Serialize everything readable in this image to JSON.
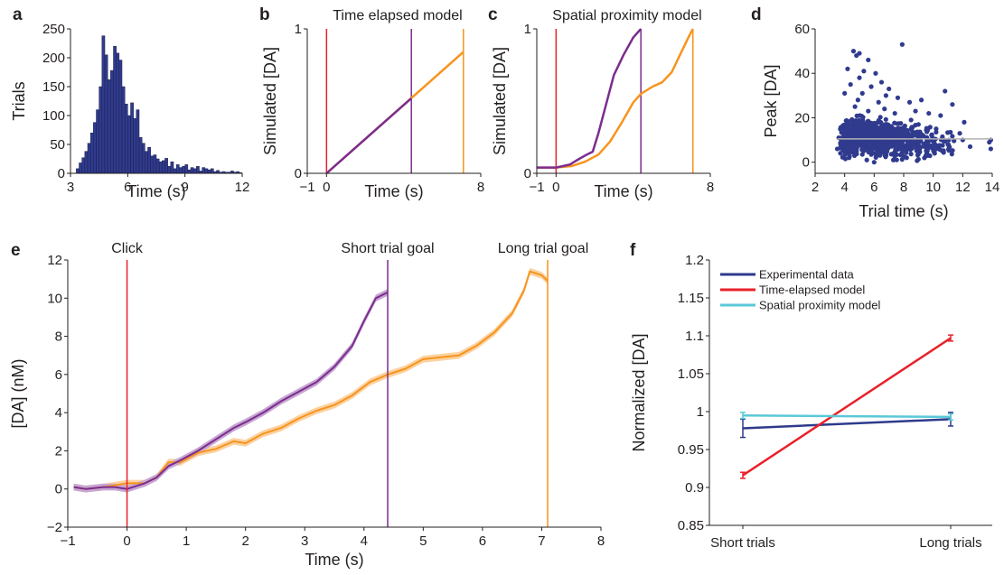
{
  "colors": {
    "axis": "#231f20",
    "purple": "#7b2d8e",
    "orange": "#f7941d",
    "red": "#e8212a",
    "blue": "#2e3a8c",
    "navy": "#303b8e",
    "cyan": "#5ac8d8",
    "gray": "#b3b3b3",
    "shadePurple": "#c7a6d3",
    "shadeOrange": "#fbd2a2"
  },
  "chart_data": [
    {
      "panel": "a",
      "type": "bar",
      "xlabel": "Time (s)",
      "ylabel": "Trials",
      "xlim": [
        3,
        12
      ],
      "ylim": [
        0,
        250
      ],
      "xticks": [
        "3",
        "6",
        "9",
        "12"
      ],
      "yticks": [
        "0",
        "50",
        "100",
        "150",
        "200",
        "250"
      ],
      "bin_width": 0.15,
      "bins": [
        {
          "x": 3.3,
          "v": 8
        },
        {
          "x": 3.45,
          "v": 18
        },
        {
          "x": 3.6,
          "v": 27
        },
        {
          "x": 3.75,
          "v": 38
        },
        {
          "x": 3.9,
          "v": 52
        },
        {
          "x": 4.05,
          "v": 70
        },
        {
          "x": 4.2,
          "v": 88
        },
        {
          "x": 4.35,
          "v": 110
        },
        {
          "x": 4.5,
          "v": 150
        },
        {
          "x": 4.65,
          "v": 238
        },
        {
          "x": 4.8,
          "v": 205
        },
        {
          "x": 4.95,
          "v": 162
        },
        {
          "x": 5.1,
          "v": 178
        },
        {
          "x": 5.25,
          "v": 220
        },
        {
          "x": 5.4,
          "v": 208
        },
        {
          "x": 5.55,
          "v": 196
        },
        {
          "x": 5.7,
          "v": 150
        },
        {
          "x": 5.85,
          "v": 120
        },
        {
          "x": 6.0,
          "v": 100
        },
        {
          "x": 6.15,
          "v": 122
        },
        {
          "x": 6.3,
          "v": 95
        },
        {
          "x": 6.45,
          "v": 110
        },
        {
          "x": 6.6,
          "v": 62
        },
        {
          "x": 6.75,
          "v": 52
        },
        {
          "x": 6.9,
          "v": 38
        },
        {
          "x": 7.05,
          "v": 45
        },
        {
          "x": 7.2,
          "v": 30
        },
        {
          "x": 7.35,
          "v": 32
        },
        {
          "x": 7.5,
          "v": 25
        },
        {
          "x": 7.65,
          "v": 20
        },
        {
          "x": 7.8,
          "v": 22
        },
        {
          "x": 7.95,
          "v": 26
        },
        {
          "x": 8.1,
          "v": 12
        },
        {
          "x": 8.25,
          "v": 20
        },
        {
          "x": 8.4,
          "v": 8
        },
        {
          "x": 8.55,
          "v": 15
        },
        {
          "x": 8.7,
          "v": 10
        },
        {
          "x": 8.85,
          "v": 12
        },
        {
          "x": 9.0,
          "v": 15
        },
        {
          "x": 9.15,
          "v": 6
        },
        {
          "x": 9.3,
          "v": 10
        },
        {
          "x": 9.45,
          "v": 8
        },
        {
          "x": 9.6,
          "v": 12
        },
        {
          "x": 9.75,
          "v": 4
        },
        {
          "x": 9.9,
          "v": 10
        },
        {
          "x": 10.05,
          "v": 8
        },
        {
          "x": 10.2,
          "v": 6
        },
        {
          "x": 10.35,
          "v": 8
        },
        {
          "x": 10.5,
          "v": 3
        },
        {
          "x": 10.65,
          "v": 5
        },
        {
          "x": 10.8,
          "v": 2
        },
        {
          "x": 10.95,
          "v": 3
        },
        {
          "x": 11.1,
          "v": 2
        },
        {
          "x": 11.25,
          "v": 2
        },
        {
          "x": 11.4,
          "v": 4
        },
        {
          "x": 11.55,
          "v": 2
        },
        {
          "x": 11.7,
          "v": 3
        },
        {
          "x": 11.85,
          "v": 1
        }
      ]
    },
    {
      "panel": "b",
      "type": "line",
      "title": "Time elapsed model",
      "xlabel": "Time (s)",
      "ylabel": "Simulated [DA]",
      "xlim": [
        -1,
        8
      ],
      "ylim": [
        0,
        1
      ],
      "xticks": [
        "−1",
        "0",
        "8"
      ],
      "yticks": [
        "0",
        "1"
      ],
      "vlines": [
        {
          "x": 0,
          "color": "red"
        },
        {
          "x": 4.4,
          "color": "purple"
        },
        {
          "x": 7.1,
          "color": "orange"
        }
      ],
      "series": [
        {
          "color": "orange",
          "points": [
            [
              0,
              0
            ],
            [
              7.1,
              0.84
            ]
          ]
        },
        {
          "color": "purple",
          "points": [
            [
              0,
              0
            ],
            [
              4.4,
              0.52
            ]
          ]
        }
      ]
    },
    {
      "panel": "c",
      "type": "line",
      "title": "Spatial proximity model",
      "xlabel": "Time (s)",
      "ylabel": "Simulated [DA]",
      "xlim": [
        -1,
        8
      ],
      "ylim": [
        0,
        1
      ],
      "xticks": [
        "−1",
        "0",
        "8"
      ],
      "yticks": [
        "0",
        "1"
      ],
      "vlines": [
        {
          "x": 0,
          "color": "red"
        },
        {
          "x": 4.4,
          "color": "purple"
        },
        {
          "x": 7.1,
          "color": "orange"
        }
      ],
      "series": [
        {
          "color": "orange",
          "points": [
            [
              -1,
              0.04
            ],
            [
              0,
              0.04
            ],
            [
              0.8,
              0.05
            ],
            [
              1.5,
              0.08
            ],
            [
              2.2,
              0.13
            ],
            [
              2.8,
              0.22
            ],
            [
              3.4,
              0.35
            ],
            [
              4.0,
              0.49
            ],
            [
              4.4,
              0.55
            ],
            [
              5.0,
              0.6
            ],
            [
              5.5,
              0.63
            ],
            [
              6.0,
              0.7
            ],
            [
              6.5,
              0.84
            ],
            [
              6.9,
              0.95
            ],
            [
              7.1,
              1.0
            ]
          ]
        },
        {
          "color": "purple",
          "points": [
            [
              -1,
              0.04
            ],
            [
              0,
              0.04
            ],
            [
              0.7,
              0.06
            ],
            [
              1.2,
              0.1
            ],
            [
              1.6,
              0.13
            ],
            [
              1.9,
              0.15
            ],
            [
              2.2,
              0.28
            ],
            [
              2.6,
              0.48
            ],
            [
              3.0,
              0.68
            ],
            [
              3.5,
              0.82
            ],
            [
              4.0,
              0.94
            ],
            [
              4.4,
              1.0
            ]
          ]
        }
      ]
    },
    {
      "panel": "d",
      "type": "scatter",
      "xlabel": "Trial time (s)",
      "ylabel": "Peak [DA]",
      "xlim": [
        2,
        14
      ],
      "ylim": [
        -5,
        60
      ],
      "xticks": [
        "2",
        "4",
        "6",
        "8",
        "10",
        "12",
        "14"
      ],
      "yticks": [
        "0",
        "20",
        "40",
        "60"
      ],
      "hline": 10.5,
      "points": [
        [
          4.6,
          50
        ],
        [
          4.8,
          48
        ],
        [
          5.0,
          49
        ],
        [
          7.9,
          53
        ],
        [
          5.6,
          46
        ],
        [
          4.2,
          42
        ],
        [
          5.3,
          41
        ],
        [
          6.1,
          40
        ],
        [
          5.0,
          38
        ],
        [
          6.5,
          36
        ],
        [
          4.4,
          35
        ],
        [
          5.8,
          34
        ],
        [
          7.0,
          33
        ],
        [
          4.0,
          31
        ],
        [
          6.8,
          30
        ],
        [
          5.2,
          31
        ],
        [
          7.6,
          29
        ],
        [
          8.4,
          27
        ],
        [
          9.2,
          28
        ],
        [
          4.9,
          28
        ],
        [
          10.8,
          32
        ],
        [
          11.3,
          26
        ],
        [
          6.3,
          27
        ],
        [
          8.8,
          23
        ],
        [
          9.7,
          22
        ],
        [
          10.5,
          21
        ],
        [
          12.1,
          18
        ],
        [
          13.9,
          10
        ],
        [
          13.9,
          6
        ],
        [
          13.8,
          9
        ],
        [
          3.6,
          11
        ],
        [
          3.5,
          6
        ],
        [
          12.5,
          7
        ],
        [
          11.8,
          13
        ],
        [
          10.1,
          4
        ],
        [
          9.5,
          3
        ],
        [
          8.2,
          2
        ],
        [
          6.0,
          0
        ],
        [
          5.5,
          1
        ],
        [
          7.3,
          1
        ],
        [
          4.3,
          2
        ],
        [
          11.0,
          8
        ],
        [
          12.0,
          10
        ],
        [
          10.2,
          15
        ],
        [
          9.0,
          17
        ],
        [
          8.5,
          19
        ],
        [
          7.4,
          22
        ],
        [
          6.7,
          24
        ],
        [
          5.6,
          23
        ],
        [
          4.7,
          25
        ],
        [
          7.8,
          12
        ],
        [
          6.4,
          18
        ]
      ],
      "dense": [
        {
          "x": 4.2,
          "y": 11,
          "n": 8
        },
        {
          "x": 4.6,
          "y": 12,
          "n": 10
        },
        {
          "x": 5.0,
          "y": 13,
          "n": 10
        },
        {
          "x": 5.4,
          "y": 12,
          "n": 10
        },
        {
          "x": 5.8,
          "y": 11,
          "n": 9
        },
        {
          "x": 6.2,
          "y": 11,
          "n": 8
        },
        {
          "x": 6.6,
          "y": 10,
          "n": 7
        },
        {
          "x": 7.0,
          "y": 10,
          "n": 6
        },
        {
          "x": 7.5,
          "y": 10,
          "n": 5
        },
        {
          "x": 8.0,
          "y": 10,
          "n": 4
        },
        {
          "x": 8.5,
          "y": 10,
          "n": 3
        },
        {
          "x": 9.0,
          "y": 9,
          "n": 3
        },
        {
          "x": 9.5,
          "y": 9,
          "n": 2
        },
        {
          "x": 10.0,
          "y": 9,
          "n": 2
        },
        {
          "x": 10.6,
          "y": 9,
          "n": 1
        },
        {
          "x": 11.2,
          "y": 9,
          "n": 1
        },
        {
          "x": 3.9,
          "y": 10,
          "n": 3
        }
      ]
    },
    {
      "panel": "e",
      "type": "line",
      "xlabel": "Time (s)",
      "ylabel": "[DA] (nM)",
      "xlim": [
        -1,
        8
      ],
      "ylim": [
        -2,
        12
      ],
      "xticks": [
        "−1",
        "0",
        "1",
        "2",
        "3",
        "4",
        "5",
        "6",
        "7",
        "8"
      ],
      "yticks": [
        "−2",
        "0",
        "2",
        "4",
        "6",
        "8",
        "10",
        "12"
      ],
      "vlines": [
        {
          "x": 0,
          "color": "red",
          "label": "Click"
        },
        {
          "x": 4.4,
          "color": "purple",
          "label": "Short trial goal"
        },
        {
          "x": 7.1,
          "color": "orange",
          "label": "Long trial goal"
        }
      ],
      "series": [
        {
          "color": "orange",
          "points": [
            [
              -0.9,
              0.1
            ],
            [
              -0.7,
              0.0
            ],
            [
              -0.4,
              0.1
            ],
            [
              -0.2,
              0.2
            ],
            [
              0,
              0.3
            ],
            [
              0.3,
              0.3
            ],
            [
              0.5,
              0.6
            ],
            [
              0.7,
              1.4
            ],
            [
              0.9,
              1.4
            ],
            [
              1.2,
              1.9
            ],
            [
              1.5,
              2.1
            ],
            [
              1.8,
              2.5
            ],
            [
              2.0,
              2.4
            ],
            [
              2.3,
              2.9
            ],
            [
              2.6,
              3.2
            ],
            [
              2.9,
              3.7
            ],
            [
              3.2,
              4.1
            ],
            [
              3.5,
              4.4
            ],
            [
              3.8,
              4.9
            ],
            [
              4.1,
              5.6
            ],
            [
              4.4,
              6.0
            ],
            [
              4.7,
              6.3
            ],
            [
              5.0,
              6.8
            ],
            [
              5.3,
              6.9
            ],
            [
              5.6,
              7.0
            ],
            [
              5.9,
              7.5
            ],
            [
              6.2,
              8.2
            ],
            [
              6.5,
              9.2
            ],
            [
              6.7,
              10.4
            ],
            [
              6.8,
              11.4
            ],
            [
              7.0,
              11.2
            ],
            [
              7.1,
              10.9
            ]
          ]
        },
        {
          "color": "purple",
          "points": [
            [
              -0.9,
              0.1
            ],
            [
              -0.7,
              0.0
            ],
            [
              -0.4,
              0.1
            ],
            [
              -0.2,
              0.1
            ],
            [
              0,
              0.0
            ],
            [
              0.3,
              0.3
            ],
            [
              0.5,
              0.6
            ],
            [
              0.7,
              1.2
            ],
            [
              0.9,
              1.5
            ],
            [
              1.2,
              2.0
            ],
            [
              1.5,
              2.6
            ],
            [
              1.8,
              3.2
            ],
            [
              2.0,
              3.5
            ],
            [
              2.3,
              4.0
            ],
            [
              2.6,
              4.6
            ],
            [
              2.9,
              5.1
            ],
            [
              3.2,
              5.6
            ],
            [
              3.5,
              6.4
            ],
            [
              3.8,
              7.5
            ],
            [
              4.0,
              8.8
            ],
            [
              4.2,
              10.0
            ],
            [
              4.4,
              10.3
            ]
          ]
        }
      ]
    },
    {
      "panel": "f",
      "type": "line",
      "xlabel": "",
      "ylabel": "Normalized [DA]",
      "ylim": [
        0.85,
        1.2
      ],
      "categories": [
        "Short trials",
        "Long trials"
      ],
      "yticks": [
        "0.85",
        "0.9",
        "0.95",
        "1",
        "1.05",
        "1.1",
        "1.15",
        "1.2"
      ],
      "series": [
        {
          "name": "Experimental data",
          "color": "blue",
          "values": [
            0.978,
            0.99
          ],
          "err": [
            0.012,
            0.009
          ]
        },
        {
          "name": "Time-elapsed model",
          "color": "red",
          "values": [
            0.916,
            1.097
          ],
          "err": [
            0.004,
            0.004
          ]
        },
        {
          "name": "Spatial proximity model",
          "color": "cyan",
          "values": [
            0.995,
            0.993
          ],
          "err": [
            0.004,
            0.004
          ]
        }
      ]
    }
  ]
}
